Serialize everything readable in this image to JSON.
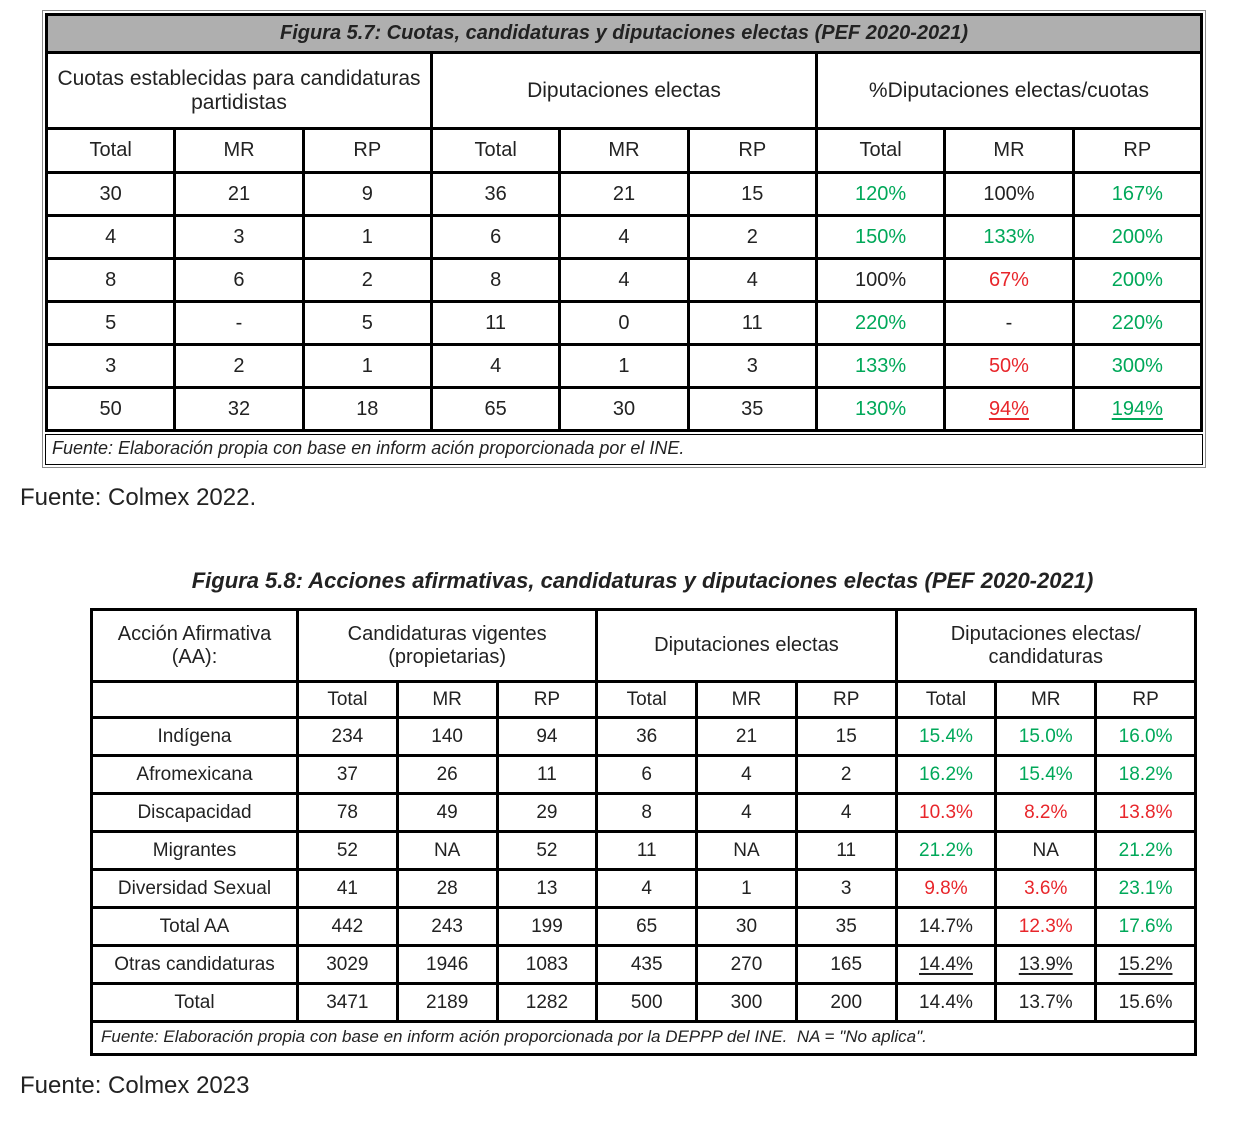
{
  "colors": {
    "green": "#00A859",
    "red": "#E8262B",
    "black": "#222222",
    "title_bar_bg": "#AFAFAF"
  },
  "table1": {
    "title": "Figura 5.7: Cuotas, candidaturas y diputaciones electas (PEF 2020-2021)",
    "groups": [
      "Cuotas establecidas para candidaturas partidistas",
      "Diputaciones electas",
      "%Diputaciones electas/cuotas"
    ],
    "subheaders": [
      "Total",
      "MR",
      "RP",
      "Total",
      "MR",
      "RP",
      "Total",
      "MR",
      "RP"
    ],
    "rows": [
      {
        "cells": [
          {
            "t": "30"
          },
          {
            "t": "21"
          },
          {
            "t": "9"
          },
          {
            "t": "36"
          },
          {
            "t": "21"
          },
          {
            "t": "15"
          },
          {
            "t": "120%",
            "s": "green bold"
          },
          {
            "t": "100%"
          },
          {
            "t": "167%",
            "s": "green bold"
          }
        ]
      },
      {
        "cells": [
          {
            "t": "4"
          },
          {
            "t": "3"
          },
          {
            "t": "1"
          },
          {
            "t": "6"
          },
          {
            "t": "4"
          },
          {
            "t": "2"
          },
          {
            "t": "150%",
            "s": "green bold"
          },
          {
            "t": "133%",
            "s": "green bold"
          },
          {
            "t": "200%",
            "s": "green bold"
          }
        ]
      },
      {
        "cells": [
          {
            "t": "8"
          },
          {
            "t": "6"
          },
          {
            "t": "2"
          },
          {
            "t": "8"
          },
          {
            "t": "4"
          },
          {
            "t": "4"
          },
          {
            "t": "100%"
          },
          {
            "t": "67%",
            "s": "red bold"
          },
          {
            "t": "200%",
            "s": "green bold"
          }
        ]
      },
      {
        "cells": [
          {
            "t": "5"
          },
          {
            "t": "-"
          },
          {
            "t": "5"
          },
          {
            "t": "11"
          },
          {
            "t": "0"
          },
          {
            "t": "11"
          },
          {
            "t": "220%",
            "s": "green bold"
          },
          {
            "t": "-"
          },
          {
            "t": "220%",
            "s": "green bold"
          }
        ]
      },
      {
        "cells": [
          {
            "t": "3"
          },
          {
            "t": "2"
          },
          {
            "t": "1"
          },
          {
            "t": "4"
          },
          {
            "t": "1"
          },
          {
            "t": "3"
          },
          {
            "t": "133%",
            "s": "green bold"
          },
          {
            "t": "50%",
            "s": "red bold"
          },
          {
            "t": "300%",
            "s": "green bold"
          }
        ]
      },
      {
        "cells": [
          {
            "t": "50"
          },
          {
            "t": "32"
          },
          {
            "t": "18"
          },
          {
            "t": "65"
          },
          {
            "t": "30"
          },
          {
            "t": "35"
          },
          {
            "t": "130%",
            "s": "green bold"
          },
          {
            "t": "94%",
            "s": "red bold underline"
          },
          {
            "t": "194%",
            "s": "green bold underline"
          }
        ]
      }
    ],
    "footer": "Fuente: Elaboración propia con base en inform ación proporcionada por el INE.",
    "caption": "Fuente: Colmex 2022."
  },
  "table2": {
    "title": "Figura 5.8: Acciones afirmativas, candidaturas y diputaciones electas (PEF 2020-2021)",
    "corner_header": "Acción Afirmativa (AA):",
    "groups": [
      "Candidaturas vigentes (propietarias)",
      "Diputaciones electas",
      "Diputaciones electas/ candidaturas"
    ],
    "subheaders": [
      "Total",
      "MR",
      "RP",
      "Total",
      "MR",
      "RP",
      "Total",
      "MR",
      "RP"
    ],
    "rows": [
      {
        "label": "Indígena",
        "cells": [
          {
            "t": "234"
          },
          {
            "t": "140"
          },
          {
            "t": "94"
          },
          {
            "t": "36"
          },
          {
            "t": "21"
          },
          {
            "t": "15"
          },
          {
            "t": "15.4%",
            "s": "green"
          },
          {
            "t": "15.0%",
            "s": "green"
          },
          {
            "t": "16.0%",
            "s": "green"
          }
        ]
      },
      {
        "label": "Afromexicana",
        "cells": [
          {
            "t": "37"
          },
          {
            "t": "26"
          },
          {
            "t": "11"
          },
          {
            "t": "6"
          },
          {
            "t": "4"
          },
          {
            "t": "2"
          },
          {
            "t": "16.2%",
            "s": "green"
          },
          {
            "t": "15.4%",
            "s": "green"
          },
          {
            "t": "18.2%",
            "s": "green bold"
          }
        ]
      },
      {
        "label": "Discapacidad",
        "cells": [
          {
            "t": "78"
          },
          {
            "t": "49"
          },
          {
            "t": "29"
          },
          {
            "t": "8"
          },
          {
            "t": "4"
          },
          {
            "t": "4"
          },
          {
            "t": "10.3%",
            "s": "red"
          },
          {
            "t": "8.2%",
            "s": "red bold"
          },
          {
            "t": "13.8%",
            "s": "red"
          }
        ]
      },
      {
        "label": "Migrantes",
        "cells": [
          {
            "t": "52"
          },
          {
            "t": "NA"
          },
          {
            "t": "52"
          },
          {
            "t": "11"
          },
          {
            "t": "NA"
          },
          {
            "t": "11"
          },
          {
            "t": "21.2%",
            "s": "green bold"
          },
          {
            "t": "NA"
          },
          {
            "t": "21.2%",
            "s": "green bold"
          }
        ]
      },
      {
        "label": "Diversidad Sexual",
        "cells": [
          {
            "t": "41"
          },
          {
            "t": "28"
          },
          {
            "t": "13"
          },
          {
            "t": "4"
          },
          {
            "t": "1"
          },
          {
            "t": "3"
          },
          {
            "t": "9.8%",
            "s": "red"
          },
          {
            "t": "3.6%",
            "s": "red bold"
          },
          {
            "t": "23.1%",
            "s": "green bold"
          }
        ]
      },
      {
        "label": "Total AA",
        "cells": [
          {
            "t": "442"
          },
          {
            "t": "243"
          },
          {
            "t": "199"
          },
          {
            "t": "65"
          },
          {
            "t": "30"
          },
          {
            "t": "35"
          },
          {
            "t": "14.7%"
          },
          {
            "t": "12.3%",
            "s": "red"
          },
          {
            "t": "17.6%",
            "s": "green"
          }
        ]
      },
      {
        "label": "Otras candidaturas",
        "cells": [
          {
            "t": "3029"
          },
          {
            "t": "1946"
          },
          {
            "t": "1083"
          },
          {
            "t": "435"
          },
          {
            "t": "270"
          },
          {
            "t": "165"
          },
          {
            "t": "14.4%",
            "s": "bold underline"
          },
          {
            "t": "13.9%",
            "s": "bold underline"
          },
          {
            "t": "15.2%",
            "s": "bold underline"
          }
        ]
      },
      {
        "label": "Total",
        "cells": [
          {
            "t": "3471"
          },
          {
            "t": "2189"
          },
          {
            "t": "1282"
          },
          {
            "t": "500"
          },
          {
            "t": "300"
          },
          {
            "t": "200"
          },
          {
            "t": "14.4%"
          },
          {
            "t": "13.7%"
          },
          {
            "t": "15.6%"
          }
        ]
      }
    ],
    "footer": "Fuente: Elaboración propia con base en inform ación proporcionada por la DEPPP del INE.  NA = \"No aplica\".",
    "caption": "Fuente: Colmex 2023"
  }
}
